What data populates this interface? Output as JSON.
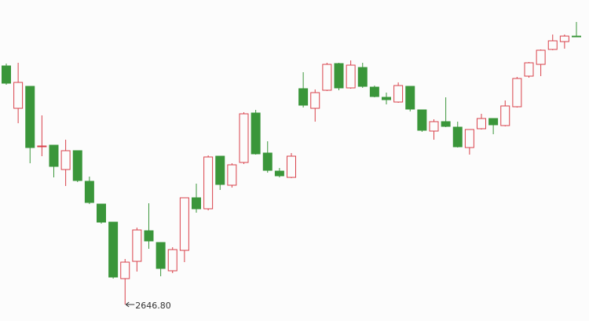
{
  "chart_data": {
    "type": "candlestick",
    "up_color": "#d9414a",
    "down_color": "#3a963a",
    "min_label": "2646.80",
    "open": [
      3069.36,
      2994.3,
      3033.22,
      2926.19,
      2928.97,
      2885.88,
      2919.24,
      2865.03,
      2824.72,
      2792.75,
      2692.67,
      2723.25,
      2777.46,
      2756.61,
      2706.57,
      2742.71,
      2835.84,
      2816.38,
      2909.51,
      2858.08,
      2898.39,
      2985.96,
      2915.07,
      2883.1,
      2871.98,
      3029.05,
      2994.3,
      3026.27,
      3073.53,
      3030.44,
      3066.58,
      3031.83,
      3013.76,
      3005.42,
      3033.22,
      2991.52,
      2953.99,
      2970.67,
      2960.94,
      2924.8,
      2958.16,
      2976.23,
      2963.72,
      2997.08,
      3051.29,
      3072.14,
      3098.55,
      3112.45,
      3122.18
    ],
    "high": [
      3073.53,
      3074.92,
      3033.22,
      2981.79,
      2928.97,
      2938.7,
      2919.24,
      2873.37,
      2824.72,
      2792.75,
      2727.42,
      2783.02,
      2826.11,
      2756.61,
      2748.27,
      2835.84,
      2860.86,
      2910.9,
      2909.51,
      2897.0,
      2987.35,
      2991.52,
      2935.92,
      2888.66,
      2915.07,
      3058.24,
      3027.66,
      3074.92,
      3074.92,
      3079.09,
      3074.92,
      3034.61,
      3022.1,
      3040.17,
      3033.22,
      2991.52,
      2974.84,
      3013.76,
      2970.67,
      2956.77,
      2984.57,
      2976.23,
      3008.2,
      3049.9,
      3076.31,
      3098.55,
      3124.96,
      3124.96,
      3147.2
    ],
    "low": [
      3036.0,
      2967.89,
      2897.0,
      2909.51,
      2871.98,
      2856.69,
      2863.64,
      2824.72,
      2789.97,
      2692.67,
      2646.8,
      2705.18,
      2745.49,
      2696.84,
      2702.4,
      2721.86,
      2809.43,
      2813.6,
      2849.74,
      2853.91,
      2895.61,
      2912.29,
      2880.32,
      2871.98,
      2870.59,
      2995.69,
      2970.67,
      3024.88,
      3026.27,
      3029.05,
      3030.44,
      3013.76,
      3001.25,
      3004.03,
      2988.74,
      2952.6,
      2938.7,
      2960.94,
      2924.8,
      2912.29,
      2956.77,
      2948.43,
      2962.33,
      2995.69,
      3048.51,
      3051.29,
      3097.16,
      3099.94,
      3120.79
    ],
    "close": [
      3038.78,
      3040.17,
      2924.8,
      2927.58,
      2891.44,
      2919.24,
      2866.42,
      2827.5,
      2792.75,
      2695.45,
      2721.86,
      2778.85,
      2759.39,
      2710.74,
      2744.1,
      2835.84,
      2816.38,
      2908.12,
      2859.47,
      2894.22,
      2984.57,
      2913.68,
      2884.49,
      2874.76,
      2909.51,
      2999.86,
      3022.1,
      3072.14,
      3030.44,
      3070.75,
      3033.22,
      3015.15,
      3009.59,
      3034.61,
      2992.91,
      2955.38,
      2970.67,
      2962.33,
      2926.19,
      2956.77,
      2976.23,
      2965.11,
      2998.47,
      3047.12,
      3074.92,
      3097.16,
      3113.84,
      3122.18,
      3120.79
    ]
  }
}
